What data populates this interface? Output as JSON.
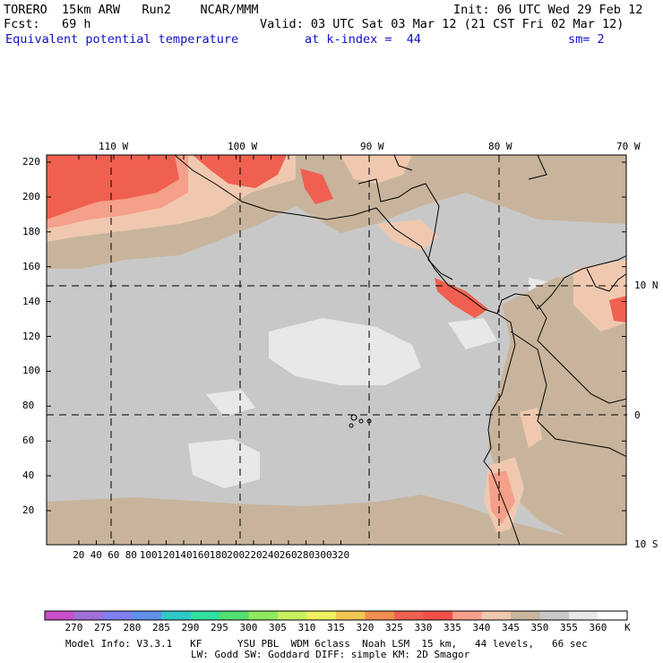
{
  "header": {
    "model": "TORERO  15km ARW   Run2    NCAR/MMM",
    "init": "Init: 06 UTC Wed 29 Feb 12",
    "fcst": "Fcst:   69 h",
    "valid": "Valid: 03 UTC Sat 03 Mar 12 (21 CST Fri 02 Mar 12)",
    "field": "Equivalent potential temperature",
    "level": "at k-index =  44",
    "smooth": "sm= 2"
  },
  "map": {
    "lon_labels": [
      "110 W",
      "100 W",
      "90 W",
      "80 W",
      "70 W"
    ],
    "lat_labels": [
      "10 N",
      "0",
      "10 S"
    ],
    "y_ticks": [
      "220",
      "200",
      "180",
      "160",
      "140",
      "120",
      "100",
      "80",
      "60",
      "40",
      "20"
    ],
    "x_ticks": [
      "20",
      "40",
      "60",
      "80",
      "100",
      "120",
      "140",
      "160",
      "180",
      "200",
      "220",
      "240",
      "260",
      "280",
      "300",
      "320"
    ],
    "colors": {
      "ocean_base": "#c8c8c8",
      "pale_patch": "#e8e8e8",
      "warm_tan": "#c8b49c",
      "salmon_light": "#f0c8b0",
      "salmon": "#f5a08a",
      "red": "#f06050",
      "coast": "#000000",
      "grid": "#000000"
    }
  },
  "colorbar": {
    "labels": [
      "270",
      "275",
      "280",
      "285",
      "290",
      "295",
      "300",
      "305",
      "310",
      "315",
      "320",
      "325",
      "330",
      "335",
      "340",
      "345",
      "350",
      "355",
      "360"
    ],
    "unit": "K",
    "colors": [
      "#c850c8",
      "#a070d8",
      "#8080f0",
      "#6090e8",
      "#30c8c8",
      "#30e0a0",
      "#50e070",
      "#90e860",
      "#c8f060",
      "#f0f060",
      "#f0c850",
      "#f09050",
      "#f06050",
      "#f05048",
      "#f5a08a",
      "#f0c8b0",
      "#c8b49c",
      "#c8c8c8",
      "#e8e8e8",
      "#ffffff"
    ]
  },
  "footer": {
    "line1": "Model Info: V3.3.1   KF      YSU PBL  WDM 6class  Noah LSM  15 km,   44 levels,   66 sec",
    "line2": "LW: Godd SW: Goddard DIFF: simple KM: 2D Smagor"
  }
}
